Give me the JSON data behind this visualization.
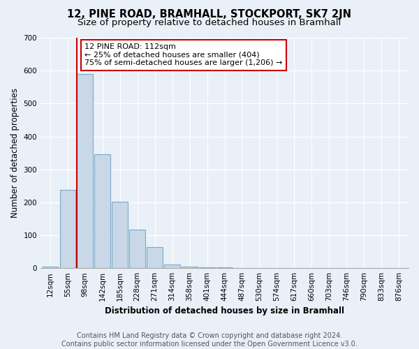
{
  "title": "12, PINE ROAD, BRAMHALL, STOCKPORT, SK7 2JN",
  "subtitle": "Size of property relative to detached houses in Bramhall",
  "xlabel": "Distribution of detached houses by size in Bramhall",
  "ylabel": "Number of detached properties",
  "bar_labels": [
    "12sqm",
    "55sqm",
    "98sqm",
    "142sqm",
    "185sqm",
    "228sqm",
    "271sqm",
    "314sqm",
    "358sqm",
    "401sqm",
    "444sqm",
    "487sqm",
    "530sqm",
    "574sqm",
    "617sqm",
    "660sqm",
    "703sqm",
    "746sqm",
    "790sqm",
    "833sqm",
    "876sqm"
  ],
  "bar_values": [
    5,
    237,
    590,
    347,
    202,
    116,
    65,
    10,
    5,
    3,
    2,
    1,
    0,
    0,
    0,
    0,
    0,
    0,
    0,
    0,
    0
  ],
  "bar_color": "#c8d8e8",
  "bar_edge_color": "#7aaac8",
  "vline_color": "#cc0000",
  "annotation_text": "12 PINE ROAD: 112sqm\n← 25% of detached houses are smaller (404)\n75% of semi-detached houses are larger (1,206) →",
  "annotation_box_color": "#ffffff",
  "annotation_box_edge_color": "#cc0000",
  "ylim": [
    0,
    700
  ],
  "yticks": [
    0,
    100,
    200,
    300,
    400,
    500,
    600,
    700
  ],
  "bg_color": "#eaf0f8",
  "plot_bg_color": "#eaf0f8",
  "grid_color": "#ffffff",
  "footer": "Contains HM Land Registry data © Crown copyright and database right 2024.\nContains public sector information licensed under the Open Government Licence v3.0.",
  "title_fontsize": 10.5,
  "subtitle_fontsize": 9.5,
  "xlabel_fontsize": 8.5,
  "ylabel_fontsize": 8.5,
  "footer_fontsize": 7.0,
  "tick_fontsize": 7.5
}
